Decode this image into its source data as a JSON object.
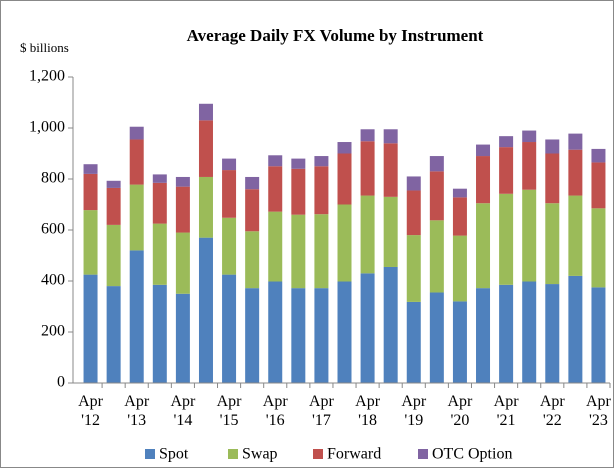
{
  "chart_data": {
    "type": "stacked_bar",
    "title": "Average Daily FX Volume  by Instrument",
    "y_label": "$ billions",
    "categories": [
      "Apr '12",
      null,
      "Apr '13",
      null,
      "Apr '14",
      null,
      "Apr '15",
      null,
      "Apr '16",
      null,
      "Apr '17",
      null,
      "Apr '18",
      null,
      "Apr '19",
      null,
      "Apr '20",
      null,
      "Apr '21",
      null,
      "Apr '22",
      null,
      "Apr '23"
    ],
    "series": [
      {
        "name": "Spot",
        "color": "#4f81bd",
        "values": [
          425,
          380,
          520,
          385,
          350,
          570,
          425,
          372,
          398,
          372,
          372,
          398,
          430,
          455,
          318,
          355,
          320,
          372,
          385,
          398,
          388,
          420,
          375
        ]
      },
      {
        "name": "Swap",
        "color": "#9bbb59",
        "values": [
          253,
          240,
          258,
          240,
          240,
          238,
          223,
          223,
          274,
          288,
          290,
          302,
          305,
          275,
          262,
          283,
          258,
          333,
          357,
          360,
          317,
          315,
          310
        ]
      },
      {
        "name": "Forward",
        "color": "#c0504d",
        "values": [
          142,
          145,
          177,
          160,
          180,
          222,
          187,
          165,
          178,
          180,
          188,
          200,
          213,
          210,
          175,
          192,
          150,
          185,
          183,
          187,
          195,
          180,
          180
        ]
      },
      {
        "name": "OTC Option",
        "color": "#8064a2",
        "values": [
          38,
          28,
          50,
          33,
          38,
          65,
          45,
          48,
          43,
          40,
          40,
          45,
          47,
          55,
          55,
          60,
          34,
          45,
          43,
          45,
          55,
          63,
          53
        ]
      }
    ],
    "ylim": [
      0,
      1200
    ],
    "yticks": [
      0,
      200,
      400,
      600,
      800,
      {
        "value": 1000,
        "label": "1,000"
      },
      {
        "value": 1200,
        "label": "1,200"
      }
    ],
    "grid": false,
    "legend": "bottom"
  }
}
